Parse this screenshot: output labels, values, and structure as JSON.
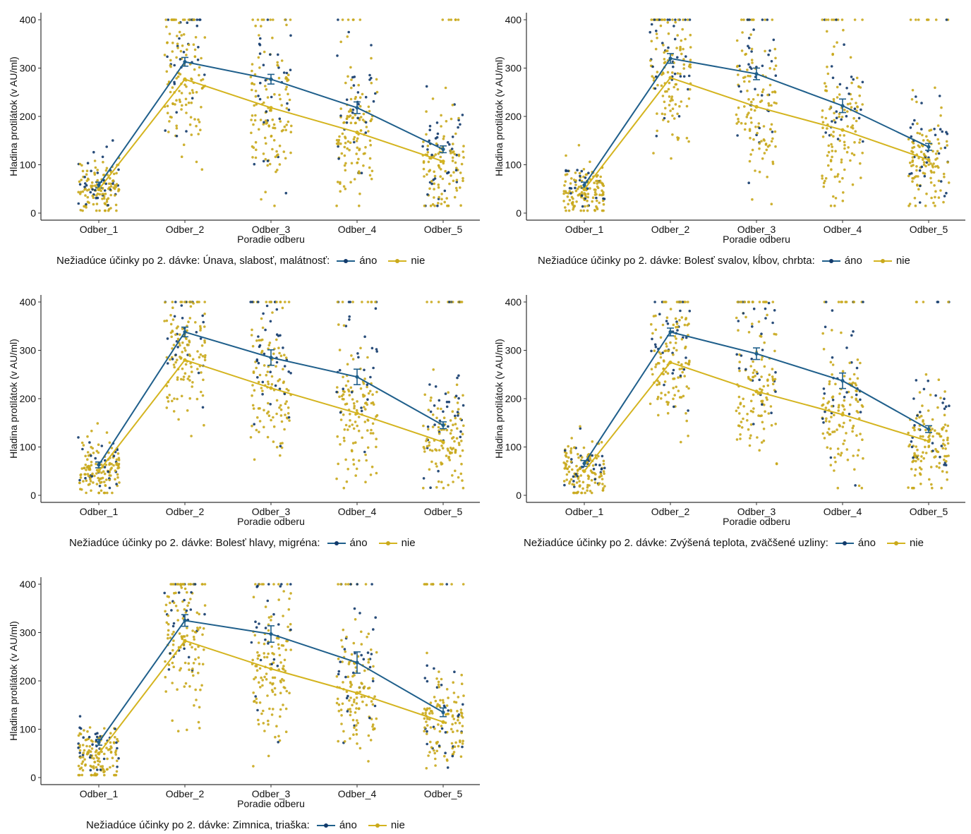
{
  "colors": {
    "ano": "#1f5f8b",
    "nie": "#d4b41f",
    "axis": "#333333",
    "dot_ano": "#123a6b",
    "dot_nie": "#c9a91c"
  },
  "y_axis_label": "Hladina protilátok (v AU/ml)",
  "x_axis_label": "Poradie odberu",
  "legend_labels": {
    "ano": "áno",
    "nie": "nie"
  },
  "panels": [
    {
      "legend_title": "Nežiadúce účinky po 2. dávke: Únava, slabosť, malátnosť:"
    },
    {
      "legend_title": "Nežiadúce účinky po 2. dávke: Bolesť svalov, kĺbov, chrbta:"
    },
    {
      "legend_title": "Nežiadúce účinky po 2. dávke: Bolesť hlavy, migréna:"
    },
    {
      "legend_title": "Nežiadúce účinky po 2. dávke: Zvýšená teplota, zväčšené uzliny:"
    },
    {
      "legend_title": "Nežiadúce účinky po 2. dávke: Zimnica, triaška:"
    }
  ],
  "chart_data": [
    {
      "type": "line",
      "categories": [
        "Odber_1",
        "Odber_2",
        "Odber_3",
        "Odber_4",
        "Odber_5"
      ],
      "xlabel": "Poradie odberu",
      "ylabel": "Hladina protilátok (v AU/ml)",
      "ylim": [
        0,
        400
      ],
      "yticks": [
        0,
        100,
        200,
        300,
        400
      ],
      "legend_position": "bottom",
      "series": [
        {
          "name": "áno",
          "values": [
            58,
            313,
            277,
            218,
            132
          ],
          "err": [
            6,
            9,
            10,
            12,
            7
          ]
        },
        {
          "name": "nie",
          "values": [
            49,
            277,
            218,
            167,
            107
          ],
          "err": [
            0,
            0,
            0,
            0,
            0
          ]
        }
      ]
    },
    {
      "type": "line",
      "categories": [
        "Odber_1",
        "Odber_2",
        "Odber_3",
        "Odber_4",
        "Odber_5"
      ],
      "xlabel": "Poradie odberu",
      "ylabel": "Hladina protilátok (v AU/ml)",
      "ylim": [
        0,
        400
      ],
      "yticks": [
        0,
        100,
        200,
        300,
        400
      ],
      "legend_position": "bottom",
      "series": [
        {
          "name": "áno",
          "values": [
            58,
            320,
            288,
            222,
            137
          ],
          "err": [
            6,
            10,
            12,
            14,
            7
          ]
        },
        {
          "name": "nie",
          "values": [
            49,
            280,
            220,
            172,
            110
          ],
          "err": [
            0,
            0,
            0,
            0,
            0
          ]
        }
      ]
    },
    {
      "type": "line",
      "categories": [
        "Odber_1",
        "Odber_2",
        "Odber_3",
        "Odber_4",
        "Odber_5"
      ],
      "xlabel": "Poradie odberu",
      "ylabel": "Hladina protilátok (v AU/ml)",
      "ylim": [
        0,
        400
      ],
      "yticks": [
        0,
        100,
        200,
        300,
        400
      ],
      "legend_position": "bottom",
      "series": [
        {
          "name": "áno",
          "values": [
            63,
            338,
            285,
            245,
            145
          ],
          "err": [
            6,
            10,
            16,
            16,
            7
          ]
        },
        {
          "name": "nie",
          "values": [
            50,
            280,
            222,
            170,
            110
          ],
          "err": [
            0,
            0,
            0,
            0,
            0
          ]
        }
      ]
    },
    {
      "type": "line",
      "categories": [
        "Odber_1",
        "Odber_2",
        "Odber_3",
        "Odber_4",
        "Odber_5"
      ],
      "xlabel": "Poradie odberu",
      "ylabel": "Hladina protilátok (v AU/ml)",
      "ylim": [
        0,
        400
      ],
      "yticks": [
        0,
        100,
        200,
        300,
        400
      ],
      "legend_position": "bottom",
      "series": [
        {
          "name": "áno",
          "values": [
            66,
            338,
            293,
            237,
            137
          ],
          "err": [
            6,
            8,
            12,
            16,
            7
          ]
        },
        {
          "name": "nie",
          "values": [
            50,
            275,
            215,
            167,
            112
          ],
          "err": [
            0,
            0,
            0,
            0,
            0
          ]
        }
      ]
    },
    {
      "type": "line",
      "categories": [
        "Odber_1",
        "Odber_2",
        "Odber_3",
        "Odber_4",
        "Odber_5"
      ],
      "xlabel": "Poradie odberu",
      "ylabel": "Hladina protilátok (v AU/ml)",
      "ylim": [
        0,
        400
      ],
      "yticks": [
        0,
        100,
        200,
        300,
        400
      ],
      "legend_position": "bottom",
      "series": [
        {
          "name": "áno",
          "values": [
            73,
            325,
            297,
            238,
            135
          ],
          "err": [
            6,
            12,
            17,
            22,
            9
          ]
        },
        {
          "name": "nie",
          "values": [
            50,
            283,
            225,
            175,
            115
          ],
          "err": [
            0,
            0,
            0,
            0,
            0
          ]
        }
      ]
    }
  ]
}
